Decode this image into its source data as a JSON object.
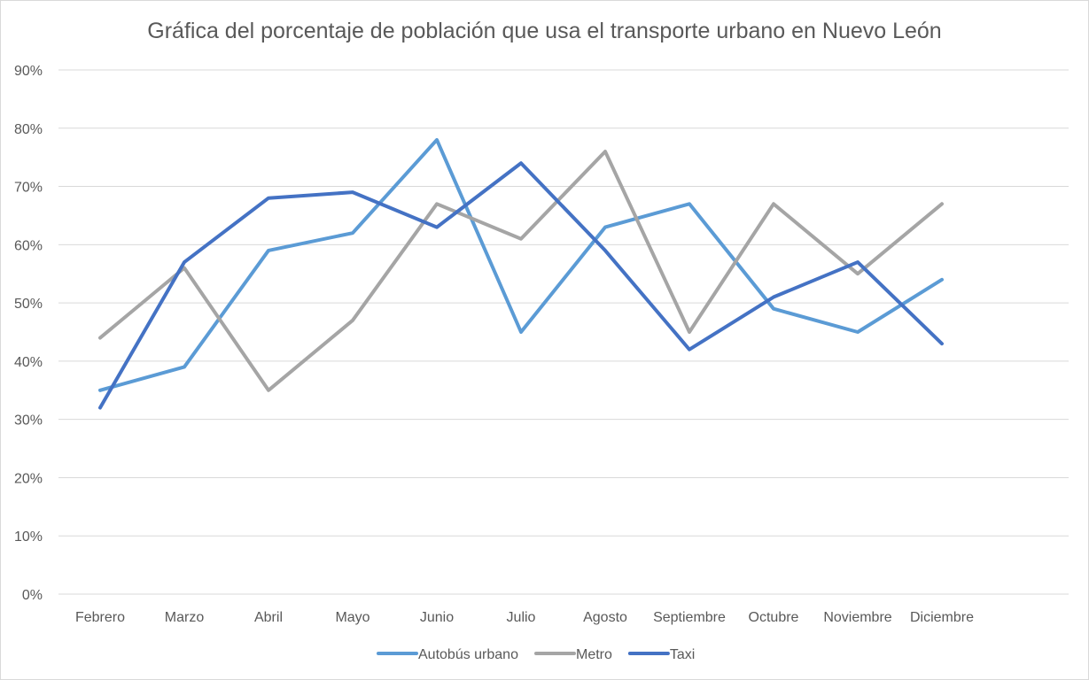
{
  "chart_data": {
    "type": "line",
    "title": "Gráfica del porcentaje de población que usa el transporte urbano en Nuevo León",
    "xlabel": "",
    "ylabel": "",
    "ylim": [
      0,
      90
    ],
    "y_ticks": [
      "0%",
      "10%",
      "20%",
      "30%",
      "40%",
      "50%",
      "60%",
      "70%",
      "80%",
      "90%"
    ],
    "grid": "horizontal",
    "legend_position": "bottom",
    "categories": [
      "Febrero",
      "Marzo",
      "Abril",
      "Mayo",
      "Junio",
      "Julio",
      "Agosto",
      "Septiembre",
      "Octubre",
      "Noviembre",
      "Diciembre"
    ],
    "series": [
      {
        "name": "Autobús urbano",
        "color": "#5b9bd5",
        "values": [
          35,
          39,
          59,
          62,
          78,
          45,
          63,
          67,
          49,
          45,
          54
        ]
      },
      {
        "name": "Metro",
        "color": "#a5a5a5",
        "values": [
          44,
          56,
          35,
          47,
          67,
          61,
          76,
          45,
          67,
          55,
          67
        ]
      },
      {
        "name": "Taxi",
        "color": "#4472c4",
        "values": [
          32,
          57,
          68,
          69,
          63,
          74,
          59,
          42,
          51,
          57,
          43
        ]
      }
    ]
  }
}
